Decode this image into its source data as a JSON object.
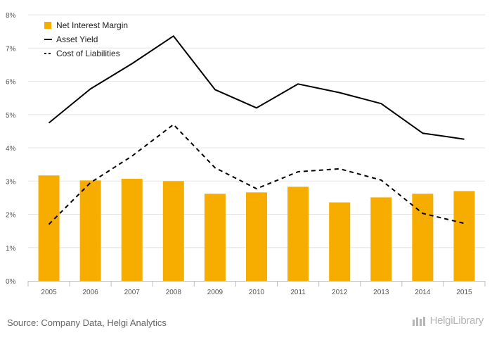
{
  "chart_data": {
    "type": "bar",
    "categories": [
      "2005",
      "2006",
      "2007",
      "2008",
      "2009",
      "2010",
      "2011",
      "2012",
      "2013",
      "2014",
      "2015"
    ],
    "series": [
      {
        "name": "Net Interest Margin",
        "type": "bar",
        "color": "#f7ad00",
        "values": [
          3.17,
          3.02,
          3.07,
          3.0,
          2.62,
          2.66,
          2.83,
          2.36,
          2.51,
          2.62,
          2.7
        ]
      },
      {
        "name": "Asset Yield",
        "type": "line",
        "style": "solid",
        "color": "#000000",
        "values": [
          4.75,
          5.77,
          6.53,
          7.36,
          5.75,
          5.2,
          5.92,
          5.66,
          5.33,
          4.44,
          4.26
        ]
      },
      {
        "name": "Cost of Liabilities",
        "type": "line",
        "style": "dashed",
        "color": "#000000",
        "values": [
          1.7,
          2.95,
          3.75,
          4.7,
          3.4,
          2.77,
          3.28,
          3.37,
          3.03,
          2.03,
          1.73
        ]
      }
    ],
    "y_ticks": [
      "0%",
      "1%",
      "2%",
      "3%",
      "4%",
      "5%",
      "6%",
      "7%",
      "8%"
    ],
    "ylim": [
      0,
      8
    ],
    "grid": true,
    "legend_position": "top-left"
  },
  "source": "Source: Company Data, Helgi Analytics",
  "watermark": "HelgiLibrary"
}
